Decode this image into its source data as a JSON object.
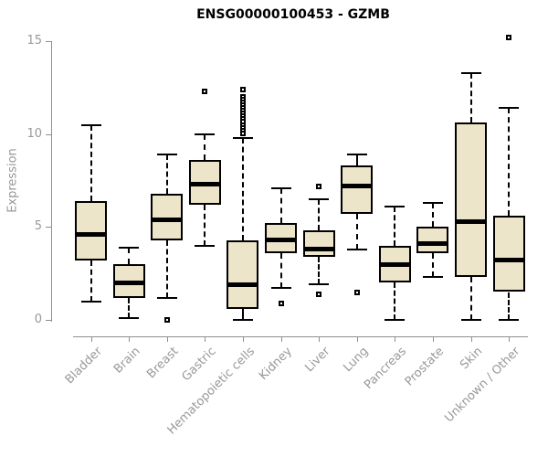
{
  "window": {
    "background": "#ffffff"
  },
  "chart_data": {
    "type": "boxplot",
    "title": "ENSG00000100453 - GZMB",
    "ylabel": "Expression",
    "xlabel": "",
    "ylim": [
      0,
      15
    ],
    "yticks": [
      0,
      5,
      10,
      15
    ],
    "grid": false,
    "legend": "none",
    "categories": [
      "Bladder",
      "Brain",
      "Breast",
      "Gastric",
      "Hematopoietic cells",
      "Kidney",
      "Liver",
      "Lung",
      "Pancreas",
      "Prostate",
      "Skin",
      "Unknown / Other"
    ],
    "boxes": [
      {
        "label": "Bladder",
        "whisker_low": 1.0,
        "q1": 3.2,
        "median": 4.6,
        "q3": 6.4,
        "whisker_high": 10.5,
        "outliers": []
      },
      {
        "label": "Brain",
        "whisker_low": 0.1,
        "q1": 1.2,
        "median": 2.0,
        "q3": 3.0,
        "whisker_high": 3.9,
        "outliers": []
      },
      {
        "label": "Breast",
        "whisker_low": 1.2,
        "q1": 4.3,
        "median": 5.4,
        "q3": 6.8,
        "whisker_high": 8.9,
        "outliers": [
          0
        ]
      },
      {
        "label": "Gastric",
        "whisker_low": 4.0,
        "q1": 6.2,
        "median": 7.3,
        "q3": 8.6,
        "whisker_high": 10.0,
        "outliers": [
          12.3
        ]
      },
      {
        "label": "Hematopoietic cells",
        "whisker_low": 0.0,
        "q1": 0.6,
        "median": 1.9,
        "q3": 4.3,
        "whisker_high": 9.8,
        "outliers": [
          12.4,
          12.0,
          11.85,
          11.7,
          11.55,
          11.4,
          11.25,
          11.1,
          10.95,
          10.8,
          10.65,
          10.5,
          10.35,
          10.2,
          10.05
        ]
      },
      {
        "label": "Kidney",
        "whisker_low": 1.7,
        "q1": 3.6,
        "median": 4.3,
        "q3": 5.2,
        "whisker_high": 7.1,
        "outliers": [
          0.9
        ]
      },
      {
        "label": "Liver",
        "whisker_low": 1.9,
        "q1": 3.4,
        "median": 3.8,
        "q3": 4.8,
        "whisker_high": 6.5,
        "outliers": [
          7.2,
          1.4
        ]
      },
      {
        "label": "Lung",
        "whisker_low": 3.8,
        "q1": 5.7,
        "median": 7.2,
        "q3": 8.3,
        "whisker_high": 8.9,
        "outliers": [
          1.5
        ]
      },
      {
        "label": "Pancreas",
        "whisker_low": 0.0,
        "q1": 2.0,
        "median": 3.0,
        "q3": 4.0,
        "whisker_high": 6.1,
        "outliers": []
      },
      {
        "label": "Prostate",
        "whisker_low": 2.3,
        "q1": 3.6,
        "median": 4.1,
        "q3": 5.0,
        "whisker_high": 6.3,
        "outliers": []
      },
      {
        "label": "Skin",
        "whisker_low": 0.0,
        "q1": 2.3,
        "median": 5.3,
        "q3": 10.6,
        "whisker_high": 13.3,
        "outliers": []
      },
      {
        "label": "Unknown / Other",
        "whisker_low": 0.0,
        "q1": 1.5,
        "median": 3.2,
        "q3": 5.6,
        "whisker_high": 11.4,
        "outliers": [
          15.2
        ]
      }
    ],
    "colors": {
      "box_fill": "#ede5c9",
      "box_border": "#000000",
      "median": "#000000",
      "whisker": "#000000",
      "outlier": "#000000",
      "axis": "#8f8f8f",
      "tick_label": "#989898",
      "title": "#000000"
    }
  }
}
